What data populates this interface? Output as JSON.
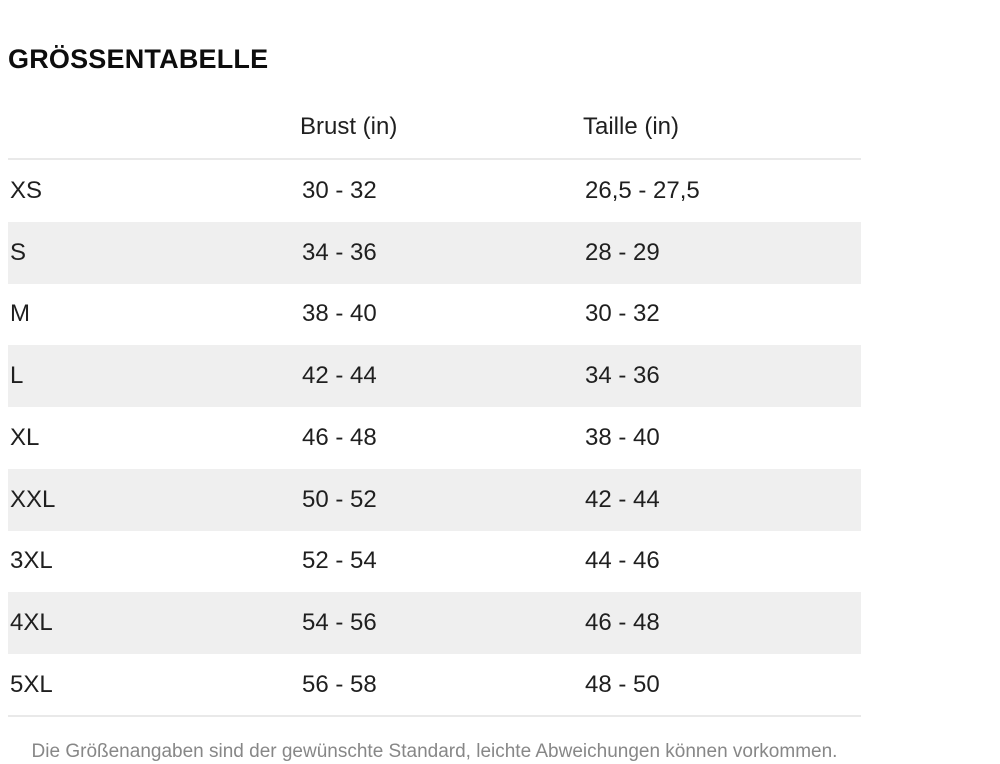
{
  "title": "GRÖSSENTABELLE",
  "table": {
    "headers": {
      "size": "",
      "brust": "Brust (in)",
      "taille": "Taille (in)"
    },
    "rows": [
      {
        "size": "XS",
        "brust": "30 - 32",
        "taille": "26,5 - 27,5"
      },
      {
        "size": "S",
        "brust": "34 - 36",
        "taille": "28 - 29"
      },
      {
        "size": "M",
        "brust": "38 - 40",
        "taille": "30 - 32"
      },
      {
        "size": "L",
        "brust": "42 - 44",
        "taille": "34 - 36"
      },
      {
        "size": "XL",
        "brust": "46 - 48",
        "taille": "38 - 40"
      },
      {
        "size": "XXL",
        "brust": "50 - 52",
        "taille": "42 - 44"
      },
      {
        "size": "3XL",
        "brust": "52 - 54",
        "taille": "44 - 46"
      },
      {
        "size": "4XL",
        "brust": "54 - 56",
        "taille": "46 - 48"
      },
      {
        "size": "5XL",
        "brust": "56 - 58",
        "taille": "48 - 50"
      }
    ]
  },
  "footnote": "Die Größenangaben sind der gewünschte Standard, leichte Abweichungen können vorkommen.",
  "colors": {
    "text": "#1f1f1f",
    "title": "#0d0d0d",
    "stripe": "#efefef",
    "divider": "#e9e9e9",
    "muted": "#878787",
    "background": "#ffffff"
  }
}
